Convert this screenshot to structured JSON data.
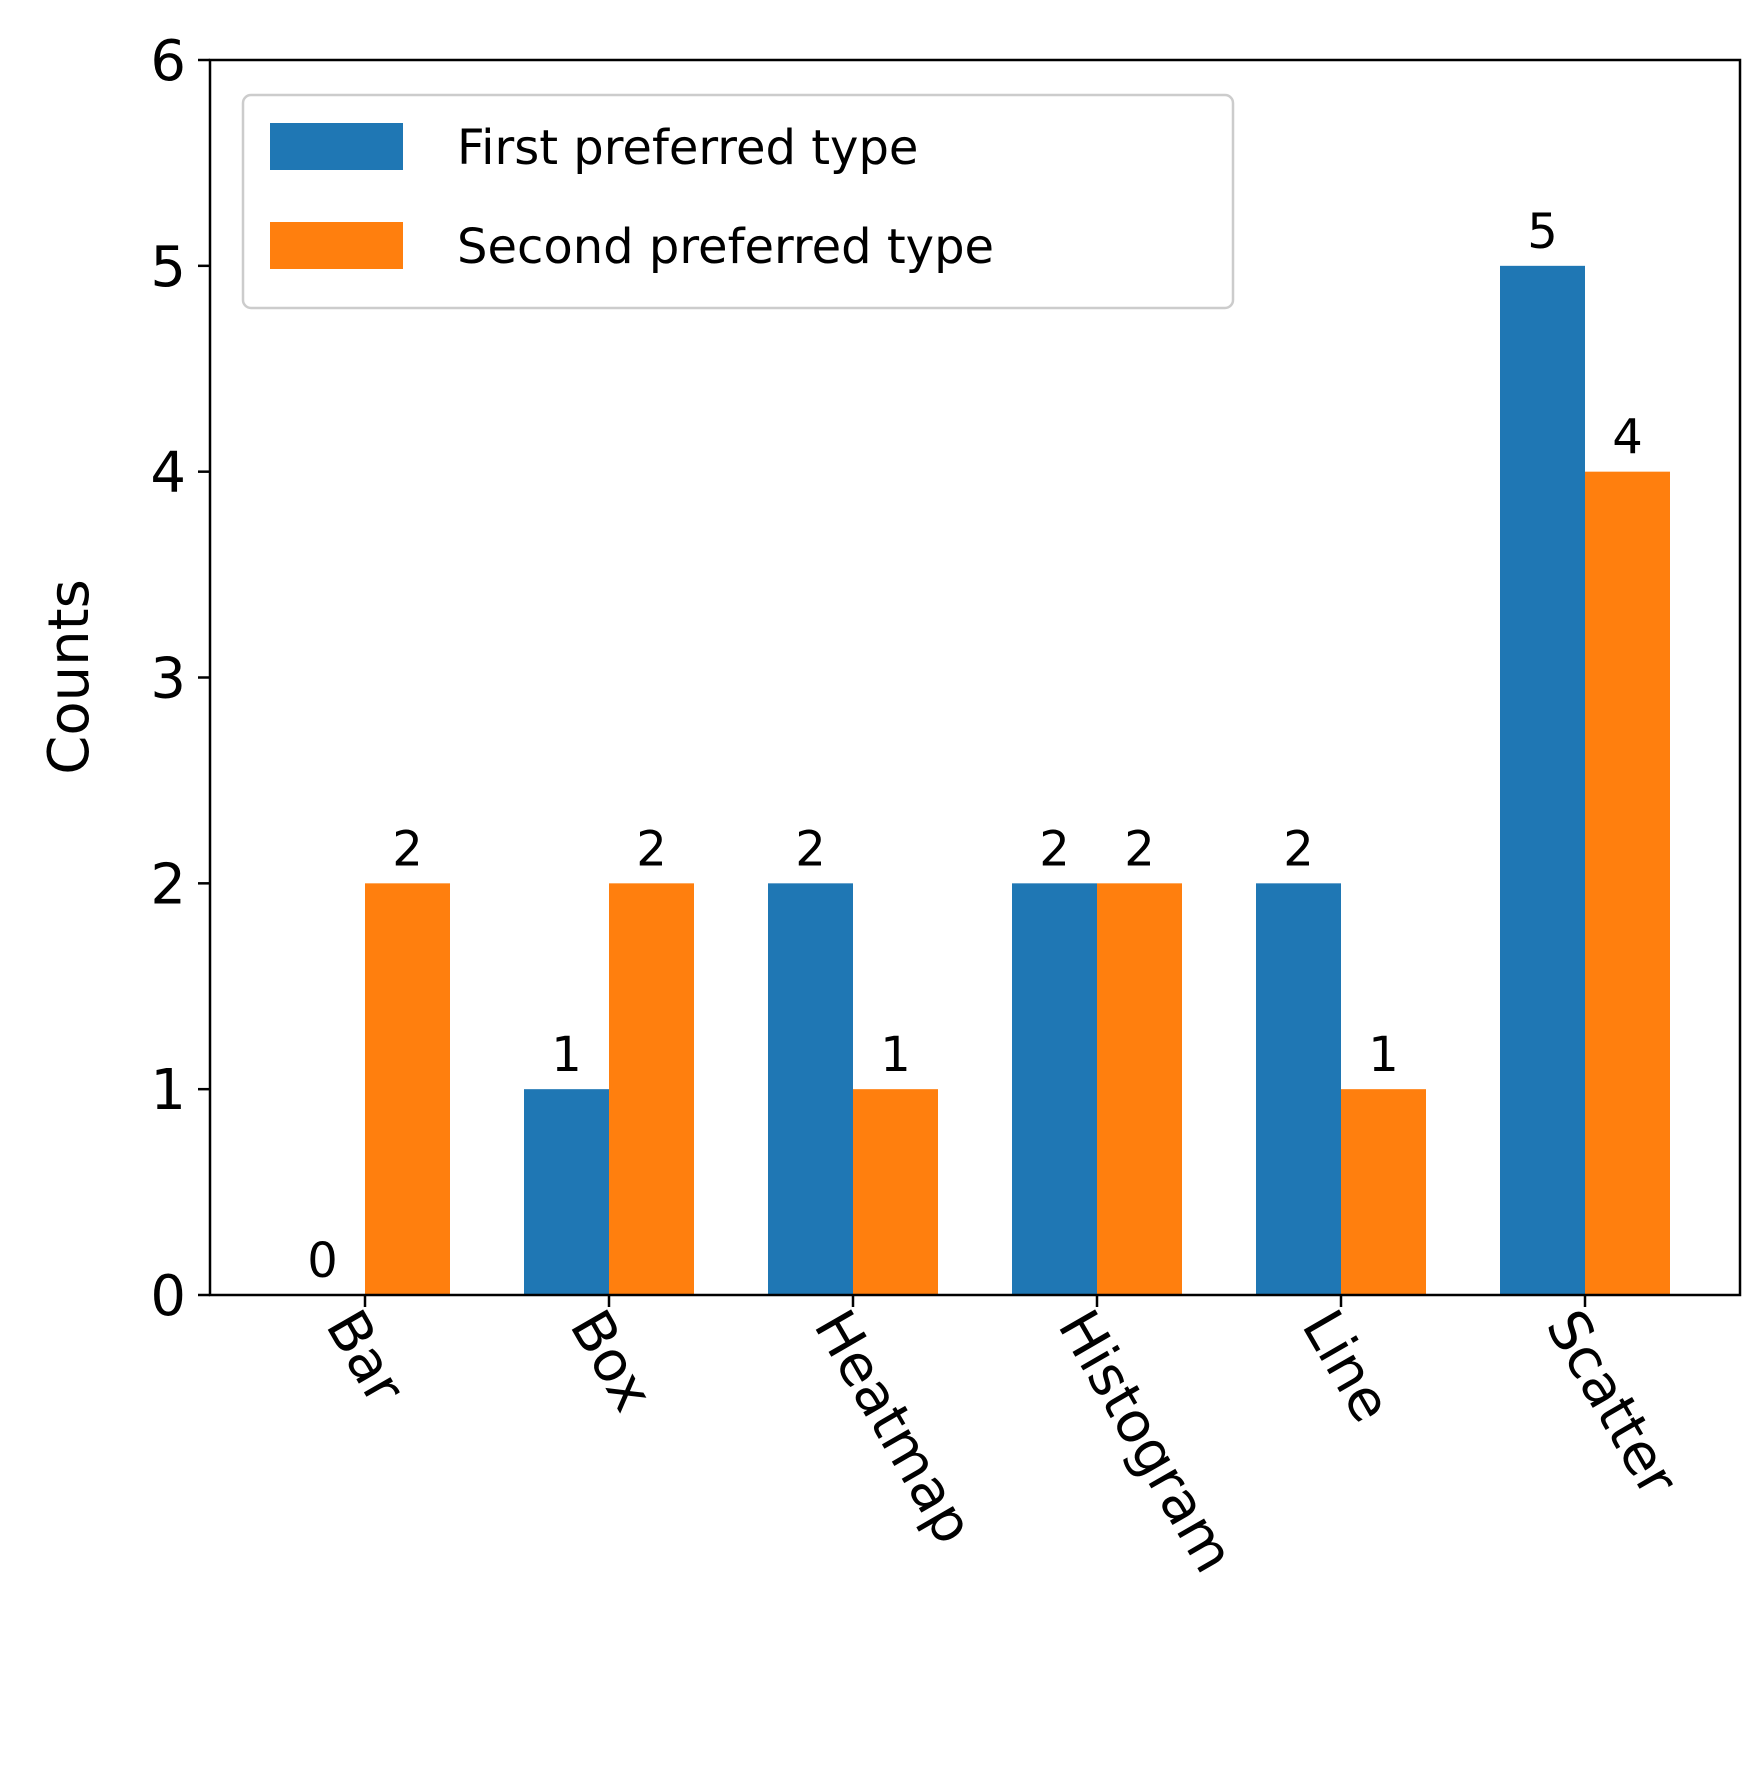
{
  "chart_data": {
    "type": "bar",
    "categories": [
      "Bar",
      "Box",
      "Heatmap",
      "Histogram",
      "Line",
      "Scatter"
    ],
    "series": [
      {
        "name": "First preferred type",
        "values": [
          0,
          1,
          2,
          2,
          2,
          5
        ],
        "color": "#1f77b4"
      },
      {
        "name": "Second preferred type",
        "values": [
          2,
          2,
          1,
          2,
          1,
          4
        ],
        "color": "#ff7f0e"
      }
    ],
    "ylabel": "Counts",
    "xlabel": "",
    "title": "",
    "ylim": [
      0,
      6
    ],
    "yticks": [
      "0",
      "1",
      "2",
      "3",
      "4",
      "5",
      "6"
    ],
    "legend_position": "top-left",
    "grid": false,
    "data_labels": true,
    "xtick_rotation": "-60deg"
  }
}
